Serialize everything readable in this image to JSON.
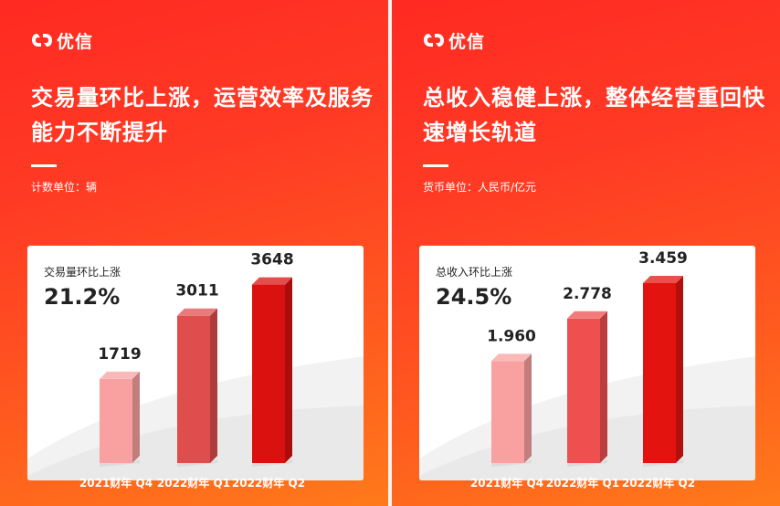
{
  "panels": [
    {
      "brand": "优信",
      "headline": "交易量环比上涨，运营效率及服务能力不断提升",
      "unit": "计数单位：辆",
      "metric_label": "交易量环比上涨",
      "metric_value": "21.2%"
    },
    {
      "brand": "优信",
      "headline": "总收入稳健上涨，整体经营重回快速增长轨道",
      "unit": "货币单位：人民币/亿元",
      "metric_label": "总收入环比上涨",
      "metric_value": "24.5%"
    }
  ],
  "chart_data": [
    {
      "type": "bar",
      "categories": [
        "2021财年 Q4",
        "2022财年 Q1",
        "2022财年 Q2"
      ],
      "values": [
        1719,
        3011,
        3648
      ],
      "value_labels": [
        "1719",
        "3011",
        "3648"
      ],
      "title": "交易量环比上涨",
      "ylim": [
        0,
        4200
      ],
      "colors": [
        "#f9a0a0",
        "#e04d4d",
        "#d9120f"
      ]
    },
    {
      "type": "bar",
      "categories": [
        "2021财年 Q4",
        "2022财年 Q1",
        "2022财年 Q2"
      ],
      "values": [
        1.96,
        2.778,
        3.459
      ],
      "value_labels": [
        "1.960",
        "2.778",
        "3.459"
      ],
      "title": "总收入环比上涨",
      "ylim": [
        0,
        3.95
      ],
      "colors": [
        "#f9a0a0",
        "#ee5050",
        "#e3140f"
      ]
    }
  ]
}
